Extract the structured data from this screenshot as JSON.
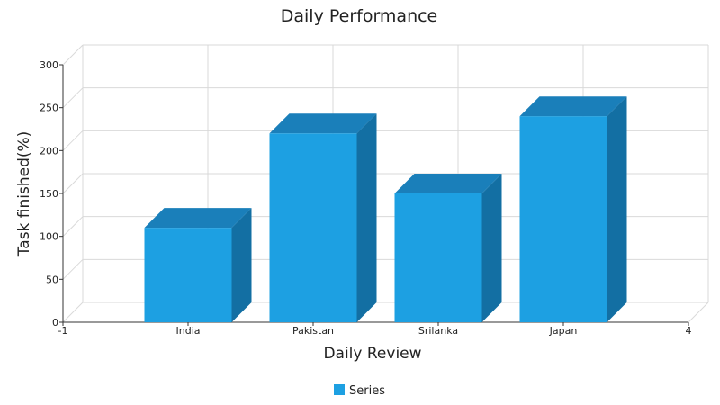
{
  "chart_data": {
    "type": "bar",
    "title": "Daily Performance",
    "xlabel": "Daily Review",
    "ylabel": "Task finished(%)",
    "categories": [
      "India",
      "Pakistan",
      "Srilanka",
      "Japan"
    ],
    "series": [
      {
        "name": "Series",
        "values": [
          110,
          220,
          150,
          240
        ]
      }
    ],
    "x_range": [
      -1,
      4
    ],
    "x_tick_labels": [
      "-1",
      "India",
      "Pakistan",
      "Srilanka",
      "Japan",
      "4"
    ],
    "ylim": [
      0,
      300
    ],
    "y_ticks": [
      0,
      50,
      100,
      150,
      200,
      250,
      300
    ],
    "grid": true,
    "three_d": true,
    "legend_position": "bottom-center",
    "colors": {
      "bar_front": "#1da0e2",
      "bar_top": "#1a7fba",
      "bar_side": "#136fa3",
      "grid": "#d9d9d9",
      "axis": "#333333"
    }
  }
}
